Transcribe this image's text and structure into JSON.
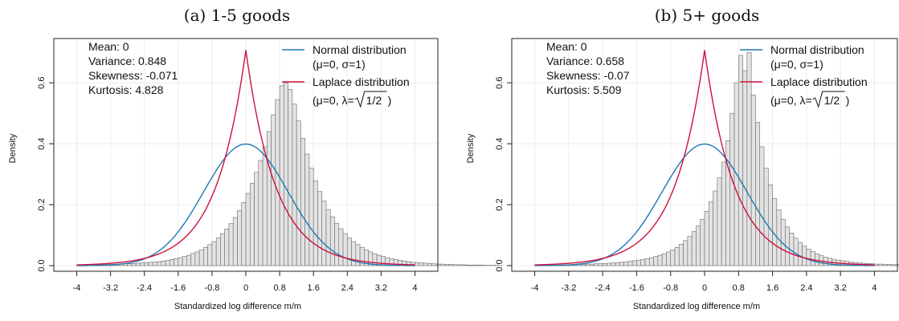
{
  "chart_data": [
    {
      "type": "histogram",
      "title": "(a) 1-5 goods",
      "xlabel": "Standardized log difference m/m",
      "ylabel": "Density",
      "xlim": [
        -4.2,
        4.2
      ],
      "ylim": [
        0,
        0.74
      ],
      "x_ticks": [
        "-4",
        "-3.2",
        "-2.4",
        "-1.6",
        "-0.8",
        "0",
        "0.8",
        "1.6",
        "2.4",
        "3.2",
        "4"
      ],
      "y_ticks": [
        "0.0",
        "0.2",
        "0.4",
        "0.6"
      ],
      "grid": true,
      "stats": [
        "Mean: 0",
        "Variance: 0.848",
        "Skewness: -0.071",
        "Kurtosis: 4.828"
      ],
      "bin_width": 0.1,
      "bins_x_start": -4.0,
      "density": [
        0.002,
        0.002,
        0.002,
        0.003,
        0.003,
        0.003,
        0.004,
        0.004,
        0.004,
        0.005,
        0.005,
        0.006,
        0.006,
        0.007,
        0.008,
        0.009,
        0.01,
        0.011,
        0.012,
        0.013,
        0.015,
        0.017,
        0.02,
        0.023,
        0.026,
        0.03,
        0.034,
        0.04,
        0.045,
        0.052,
        0.06,
        0.069,
        0.079,
        0.091,
        0.105,
        0.12,
        0.138,
        0.158,
        0.181,
        0.207,
        0.237,
        0.27,
        0.306,
        0.345,
        0.39,
        0.44,
        0.495,
        0.545,
        0.59,
        0.6,
        0.578,
        0.53,
        0.475,
        0.418,
        0.366,
        0.32,
        0.278,
        0.243,
        0.212,
        0.184,
        0.16,
        0.139,
        0.121,
        0.105,
        0.091,
        0.079,
        0.069,
        0.06,
        0.052,
        0.045,
        0.039,
        0.034,
        0.03,
        0.026,
        0.023,
        0.02,
        0.017,
        0.015,
        0.013,
        0.011,
        0.01,
        0.009,
        0.008,
        0.007,
        0.006,
        0.005,
        0.005,
        0.004,
        0.004,
        0.003,
        0.003,
        0.003,
        0.002,
        0.002,
        0.002,
        0.002,
        0.001,
        0.001,
        0.001,
        0.001
      ],
      "series": [
        {
          "name": "Normal distribution",
          "params": "(μ=0, σ=1)",
          "color": "#1f78b4",
          "dist": "normal",
          "mu": 0,
          "sigma": 1
        },
        {
          "name": "Laplace distribution",
          "params_pre": "(μ=0, λ=",
          "params_rad": "1/2",
          "params_post": ")",
          "color": "#d0103a",
          "dist": "laplace",
          "mu": 0,
          "lambda": 0.7071
        }
      ]
    },
    {
      "type": "histogram",
      "title": "(b) 5+ goods",
      "xlabel": "Standardized log difference m/m",
      "ylabel": "Density",
      "xlim": [
        -4.2,
        4.2
      ],
      "ylim": [
        0,
        0.74
      ],
      "x_ticks": [
        "-4",
        "-3.2",
        "-2.4",
        "-1.6",
        "-0.8",
        "0",
        "0.8",
        "1.6",
        "2.4",
        "3.2",
        "4"
      ],
      "y_ticks": [
        "0.0",
        "0.2",
        "0.4",
        "0.6"
      ],
      "grid": true,
      "stats": [
        "Mean: 0",
        "Variance: 0.658",
        "Skewness: -0.07",
        "Kurtosis: 5.509"
      ],
      "bin_width": 0.1,
      "bins_x_start": -4.0,
      "density": [
        0.001,
        0.001,
        0.001,
        0.002,
        0.002,
        0.002,
        0.002,
        0.003,
        0.003,
        0.003,
        0.004,
        0.004,
        0.005,
        0.005,
        0.006,
        0.006,
        0.007,
        0.008,
        0.009,
        0.01,
        0.011,
        0.012,
        0.014,
        0.016,
        0.018,
        0.02,
        0.023,
        0.026,
        0.03,
        0.034,
        0.039,
        0.045,
        0.052,
        0.06,
        0.07,
        0.082,
        0.096,
        0.112,
        0.13,
        0.152,
        0.178,
        0.209,
        0.245,
        0.288,
        0.34,
        0.41,
        0.5,
        0.6,
        0.69,
        0.64,
        0.7,
        0.56,
        0.47,
        0.39,
        0.32,
        0.265,
        0.22,
        0.183,
        0.152,
        0.127,
        0.107,
        0.09,
        0.076,
        0.064,
        0.054,
        0.046,
        0.039,
        0.033,
        0.028,
        0.024,
        0.021,
        0.018,
        0.016,
        0.014,
        0.012,
        0.01,
        0.009,
        0.008,
        0.007,
        0.006,
        0.005,
        0.005,
        0.004,
        0.004,
        0.003,
        0.003,
        0.003,
        0.002,
        0.002,
        0.002,
        0.002,
        0.001,
        0.001,
        0.001,
        0.001,
        0.001,
        0.001,
        0.001,
        0.001,
        0.001
      ],
      "series": [
        {
          "name": "Normal distribution",
          "params": "(μ=0, σ=1)",
          "color": "#1f78b4",
          "dist": "normal",
          "mu": 0,
          "sigma": 1
        },
        {
          "name": "Laplace distribution",
          "params_pre": "(μ=0, λ=",
          "params_rad": "1/2",
          "params_post": ")",
          "color": "#d0103a",
          "dist": "laplace",
          "mu": 0,
          "lambda": 0.7071
        }
      ]
    }
  ]
}
